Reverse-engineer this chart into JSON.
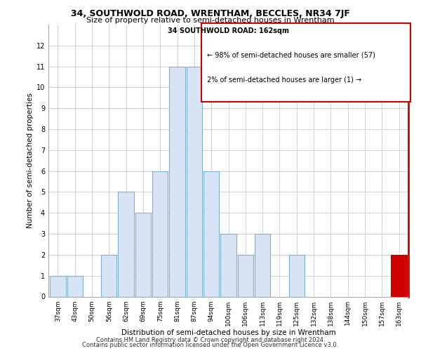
{
  "title": "34, SOUTHWOLD ROAD, WRENTHAM, BECCLES, NR34 7JF",
  "subtitle": "Size of property relative to semi-detached houses in Wrentham",
  "xlabel": "Distribution of semi-detached houses by size in Wrentham",
  "ylabel": "Number of semi-detached properties",
  "categories": [
    "37sqm",
    "43sqm",
    "50sqm",
    "56sqm",
    "62sqm",
    "69sqm",
    "75sqm",
    "81sqm",
    "87sqm",
    "94sqm",
    "100sqm",
    "106sqm",
    "113sqm",
    "119sqm",
    "125sqm",
    "132sqm",
    "138sqm",
    "144sqm",
    "150sqm",
    "157sqm",
    "163sqm"
  ],
  "values": [
    1,
    1,
    0,
    2,
    5,
    4,
    6,
    11,
    11,
    6,
    3,
    2,
    3,
    0,
    2,
    0,
    0,
    0,
    0,
    0,
    2
  ],
  "highlight_index": 20,
  "bar_color_face": "#d6e4f5",
  "bar_color_edge": "#7bafd4",
  "highlight_color": "#cc0000",
  "ylim": [
    0,
    13
  ],
  "yticks": [
    0,
    1,
    2,
    3,
    4,
    5,
    6,
    7,
    8,
    9,
    10,
    11,
    12
  ],
  "legend_title": "34 SOUTHWOLD ROAD: 162sqm",
  "legend_line1": "← 98% of semi-detached houses are smaller (57)",
  "legend_line2": "2% of semi-detached houses are larger (1) →",
  "footer1": "Contains HM Land Registry data © Crown copyright and database right 2024.",
  "footer2": "Contains public sector information licensed under the Open Government Licence v3.0.",
  "grid_color": "#cccccc"
}
